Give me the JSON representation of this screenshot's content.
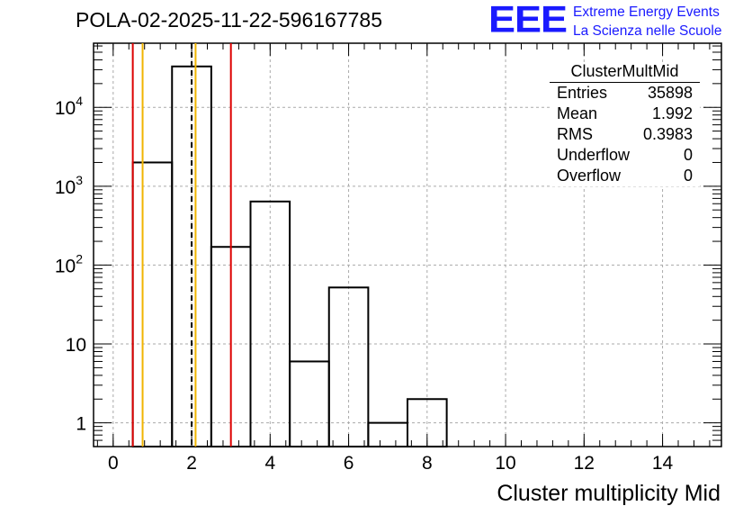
{
  "header": {
    "title": "POLA-02-2025-11-22-596167785",
    "logo": "EEE",
    "logo_line1": "Extreme Energy Events",
    "logo_line2": "La Scienza nelle Scuole"
  },
  "stats": {
    "name": "ClusterMultMid",
    "rows": [
      {
        "label": "Entries",
        "value": "35898"
      },
      {
        "label": "Mean",
        "value": "1.992"
      },
      {
        "label": "RMS",
        "value": "0.3983"
      },
      {
        "label": "Underflow",
        "value": "0"
      },
      {
        "label": "Overflow",
        "value": "0"
      }
    ]
  },
  "colors": {
    "red": "#dd0000",
    "orange": "#f0b400",
    "line": "#000000",
    "grid": "#aaaaaa"
  },
  "chart_data": {
    "type": "bar",
    "title": "POLA-02-2025-11-22-596167785",
    "xlabel": "Cluster multiplicity Mid",
    "ylabel": "",
    "yscale": "log",
    "xlim": [
      -0.5,
      15.5
    ],
    "ylim": [
      0.5,
      65000
    ],
    "bin_width": 1,
    "bin_centers": [
      1,
      2,
      3,
      4,
      5,
      6,
      7,
      8
    ],
    "values": [
      2000,
      33000,
      170,
      640,
      6,
      52,
      1,
      2
    ],
    "x_ticks": [
      0,
      2,
      4,
      6,
      8,
      10,
      12,
      14
    ],
    "x_tick_labels": [
      "0",
      "2",
      "4",
      "6",
      "8",
      "10",
      "12",
      "14"
    ],
    "y_ticks": [
      1,
      10,
      100,
      1000,
      10000
    ],
    "y_tick_base": "10",
    "y_tick_exps": [
      "",
      "",
      "2",
      "3",
      "4"
    ],
    "y_tick_plain": [
      "1",
      "10",
      "",
      "",
      ""
    ],
    "grid": true,
    "vertical_lines": [
      {
        "x": 0.5,
        "color": "red",
        "style": "solid"
      },
      {
        "x": 3.0,
        "color": "red",
        "style": "solid"
      },
      {
        "x": 0.75,
        "color": "orange",
        "style": "solid"
      },
      {
        "x": 2.1,
        "color": "orange",
        "style": "solid"
      },
      {
        "x": 2.0,
        "color": "black",
        "style": "dashed"
      }
    ]
  }
}
